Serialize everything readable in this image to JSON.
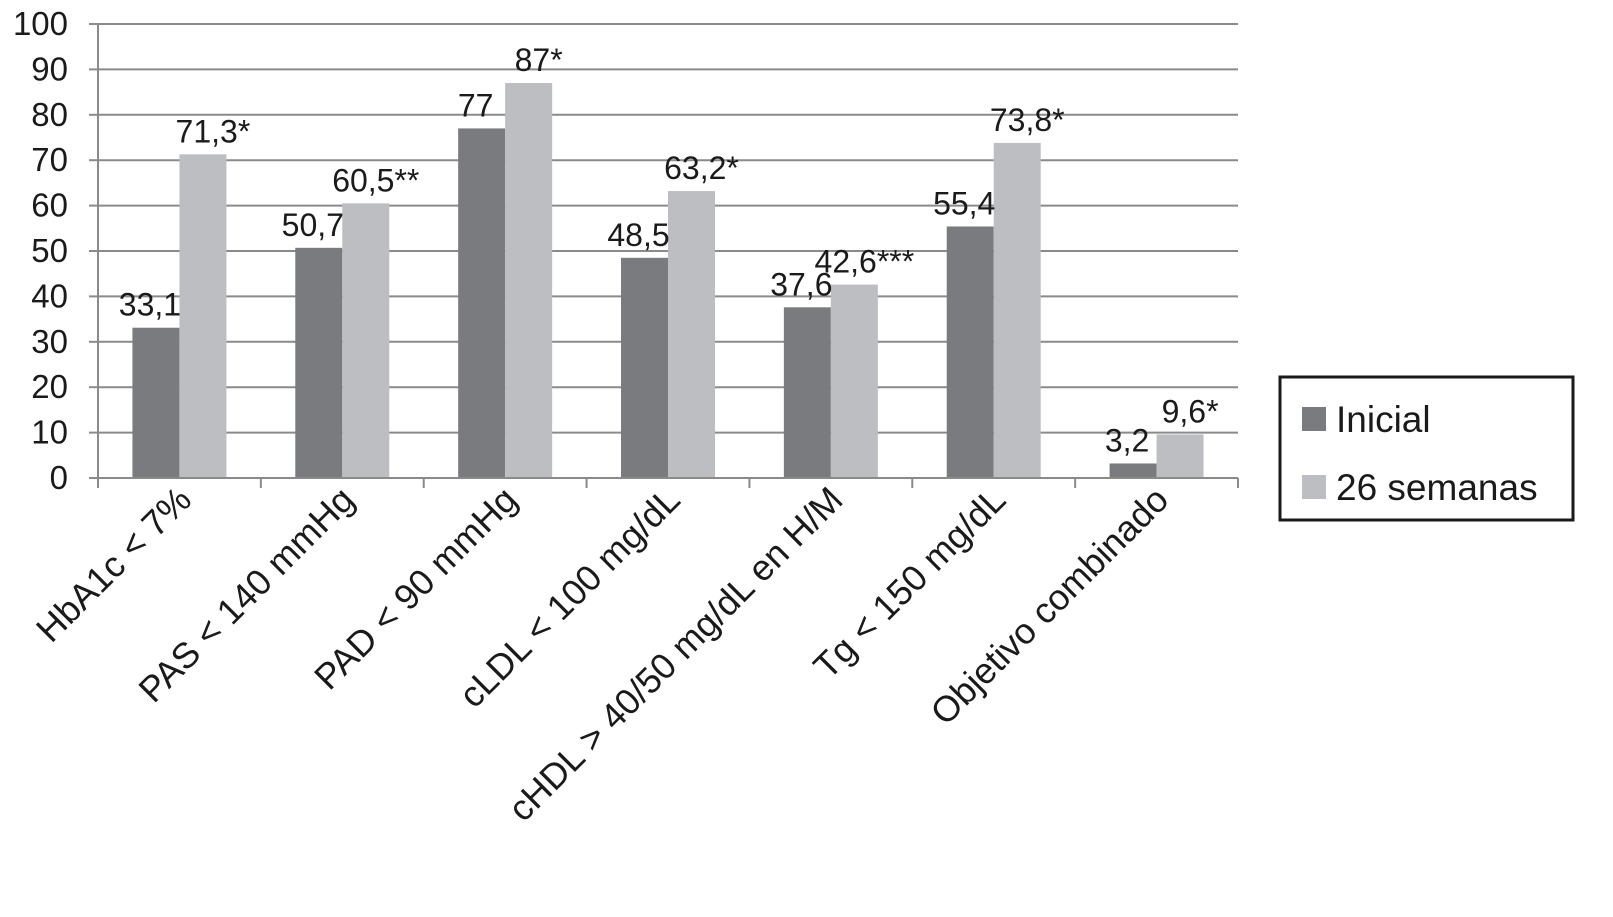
{
  "chart_data": {
    "type": "bar",
    "categories": [
      "HbA1c < 7%",
      "PAS < 140 mmHg",
      "PAD < 90 mmHg",
      "cLDL < 100 mg/dL",
      "cHDL > 40/50 mg/dL en H/M",
      "Tg < 150 mg/dL",
      "Objetivo combinado"
    ],
    "series": [
      {
        "name": "Inicial",
        "color": "#7a7b7e",
        "values": [
          33.1,
          50.7,
          77,
          48.5,
          37.6,
          55.4,
          3.2
        ],
        "labels": [
          "33,1",
          "50,7",
          "77",
          "48,5",
          "37,6",
          "55,4",
          "3,2"
        ]
      },
      {
        "name": "26 semanas",
        "color": "#bdbec1",
        "values": [
          71.3,
          60.5,
          87,
          63.2,
          42.6,
          73.8,
          9.6
        ],
        "labels": [
          "71,3*",
          "60,5**",
          "87*",
          "63,2*",
          "42,6***",
          "73,8*",
          "9,6*"
        ]
      }
    ],
    "ylim": [
      0,
      100
    ],
    "yticks": [
      "0",
      "10",
      "20",
      "30",
      "40",
      "50",
      "60",
      "70",
      "80",
      "90",
      "100"
    ],
    "title": "",
    "xlabel": "",
    "ylabel": "",
    "grid": true,
    "legend": "right"
  }
}
